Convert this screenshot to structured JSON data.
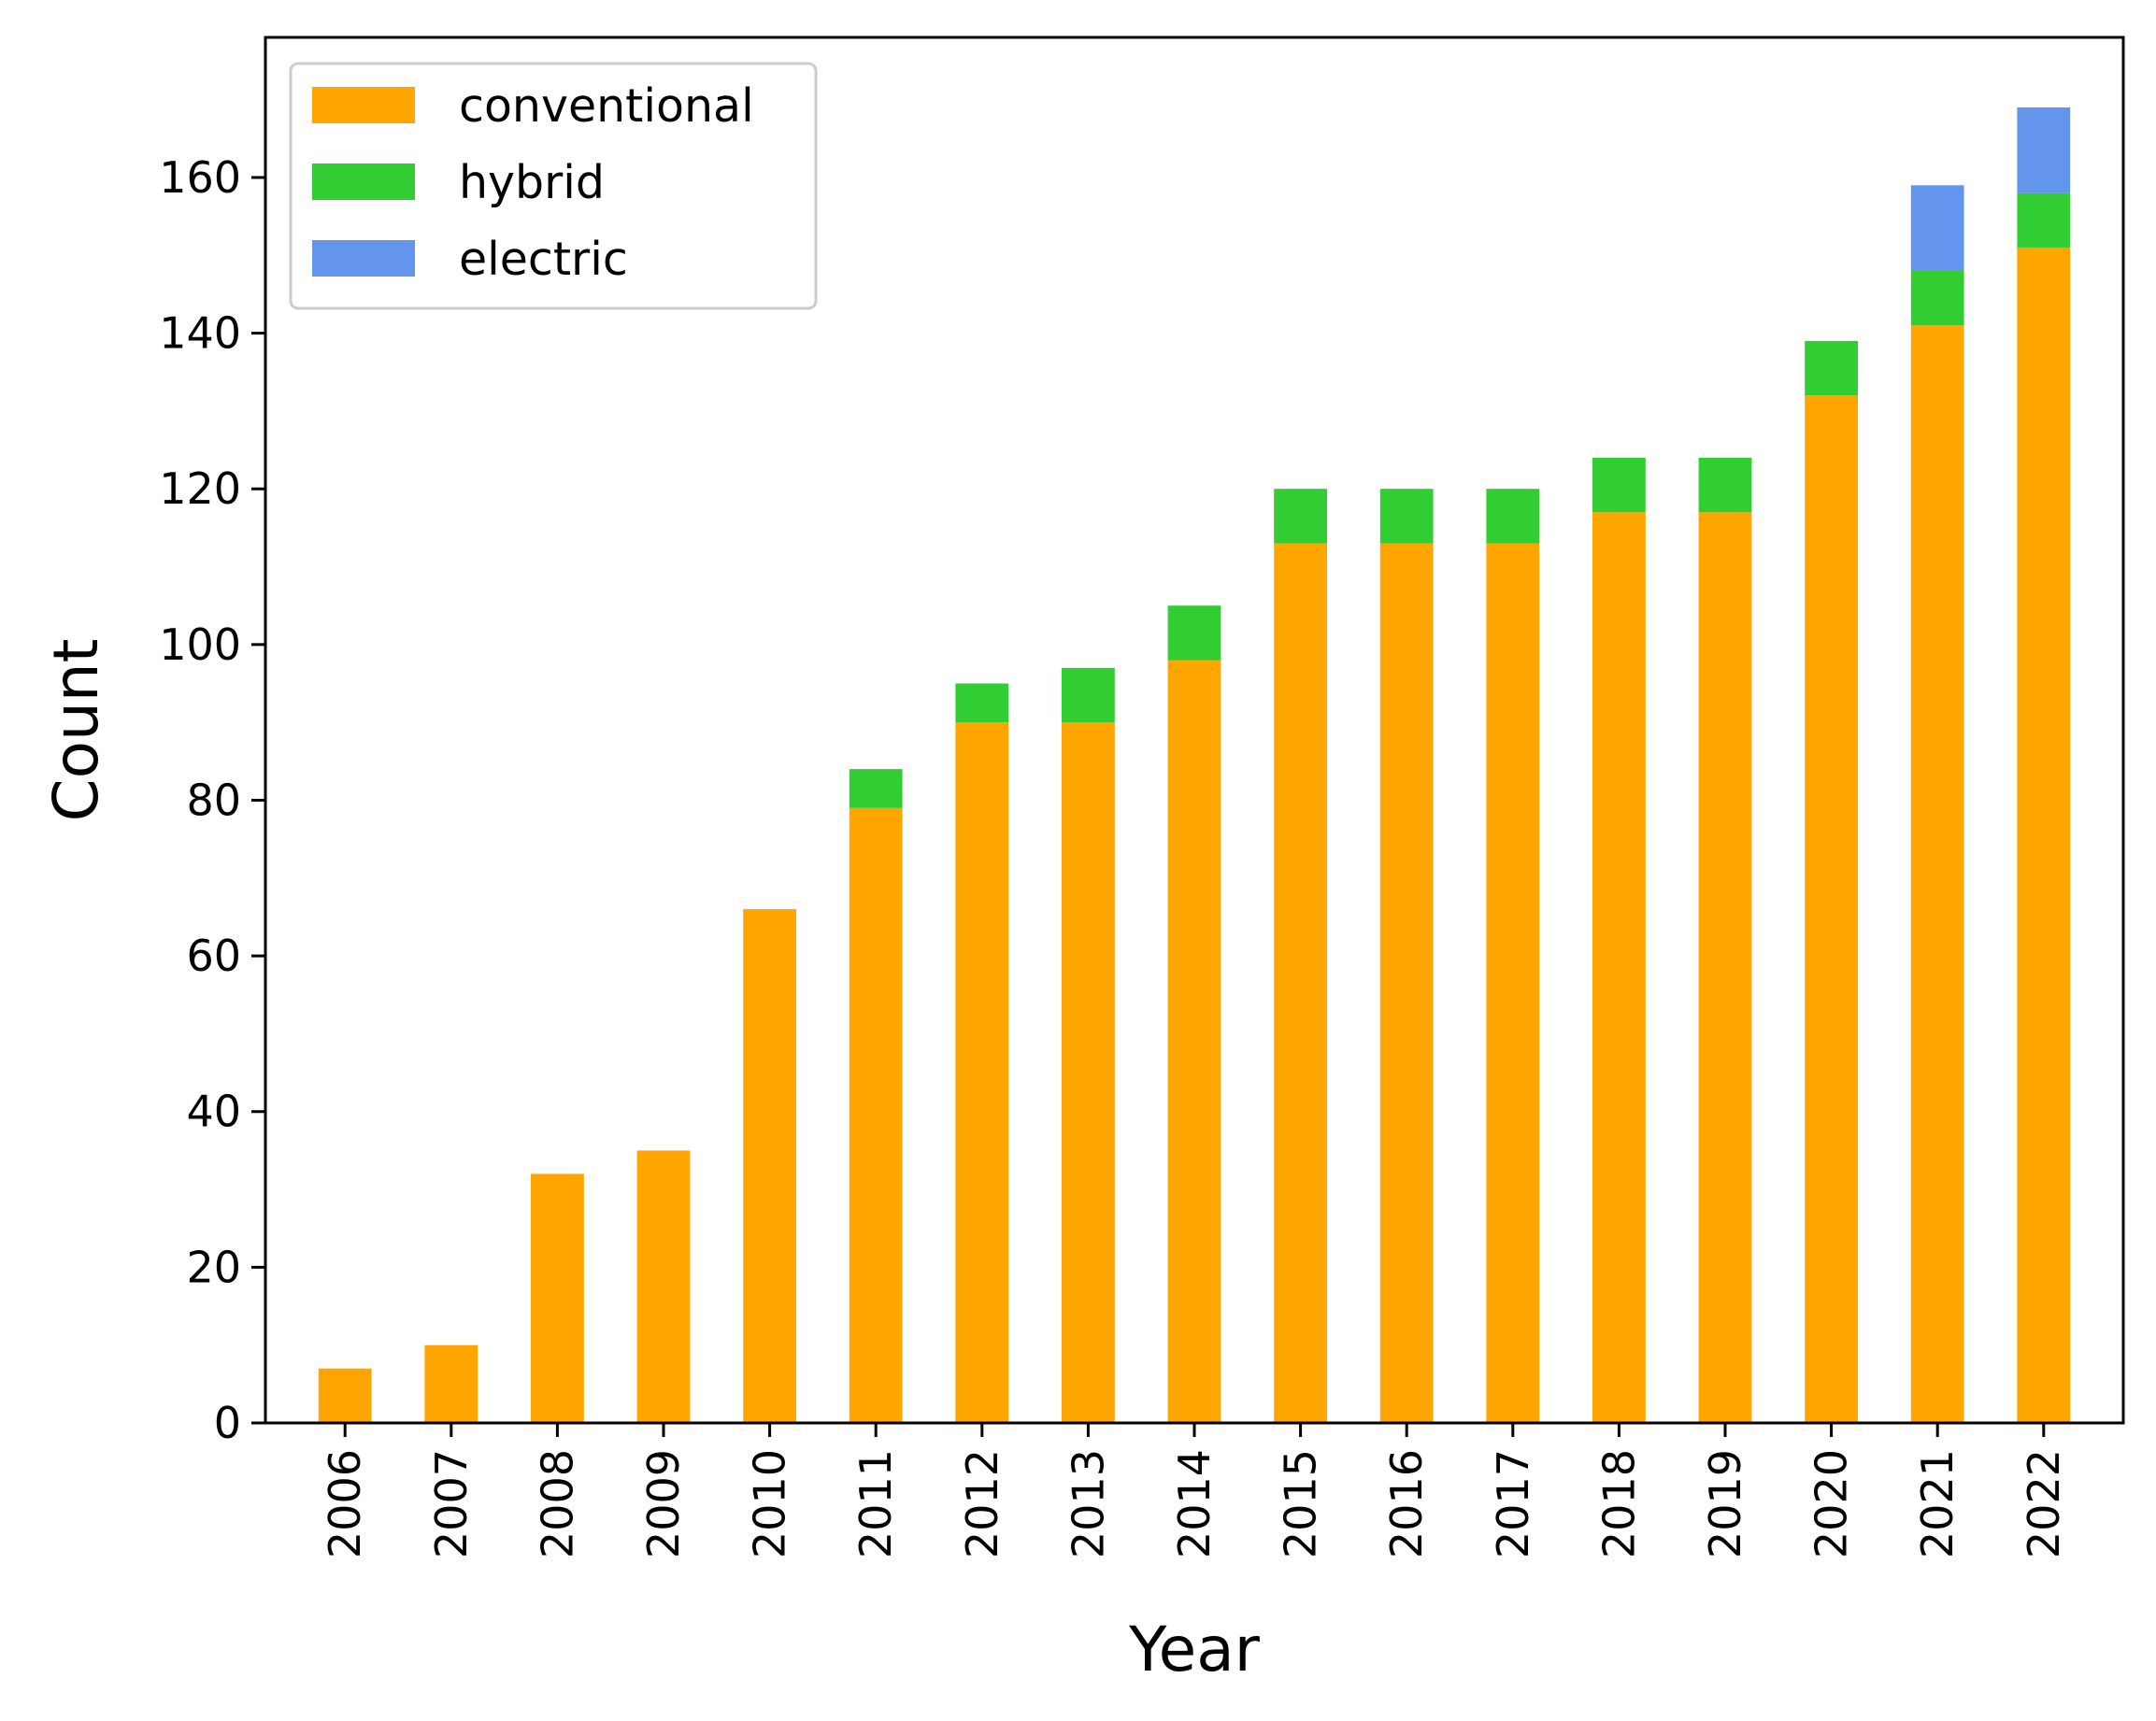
{
  "chart_data": {
    "type": "bar",
    "stacked": true,
    "title": "",
    "xlabel": "Year",
    "ylabel": "Count",
    "ylim": [
      0,
      178
    ],
    "yticks": [
      0,
      20,
      40,
      60,
      80,
      100,
      120,
      140,
      160
    ],
    "categories": [
      "2006",
      "2007",
      "2008",
      "2009",
      "2010",
      "2011",
      "2012",
      "2013",
      "2014",
      "2015",
      "2016",
      "2017",
      "2018",
      "2019",
      "2020",
      "2021",
      "2022"
    ],
    "series": [
      {
        "name": "conventional",
        "color": "#FFA500",
        "values": [
          7,
          10,
          32,
          35,
          66,
          79,
          90,
          90,
          98,
          113,
          113,
          113,
          117,
          117,
          132,
          141,
          151
        ]
      },
      {
        "name": "hybrid",
        "color": "#32CD32",
        "values": [
          0,
          0,
          0,
          0,
          0,
          5,
          5,
          7,
          7,
          7,
          7,
          7,
          7,
          7,
          7,
          7,
          7
        ]
      },
      {
        "name": "electric",
        "color": "#6495ED",
        "values": [
          0,
          0,
          0,
          0,
          0,
          0,
          0,
          0,
          0,
          0,
          0,
          0,
          0,
          0,
          0,
          11,
          11
        ]
      }
    ],
    "grid": false,
    "legend_position": "top-left"
  }
}
